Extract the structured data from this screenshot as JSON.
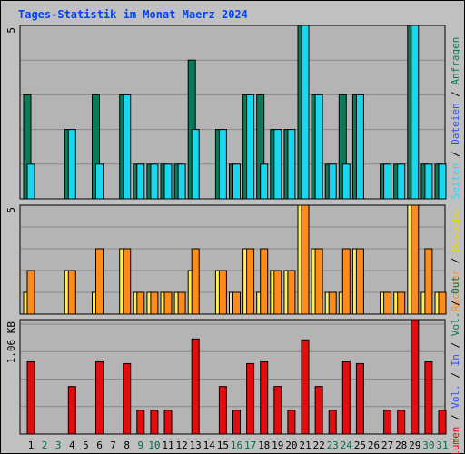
{
  "title": "Tages-Statistik im Monat Maerz 2024",
  "colors": {
    "background": "#c0c0c0",
    "plot_bg": "#b4b4b4",
    "grid": "#888888",
    "title": "#0040ff",
    "weekday": "#000000",
    "weekend": "#006a4e",
    "anfragen": "#0a7a5a",
    "dateien": "#1ad7f0",
    "seiten": "#20e0ff",
    "besuche": "#ffee55",
    "rechner": "#ff8c1a",
    "volumen": "#e30d0d",
    "vol_in": "#3050ff",
    "vol_out": "#0a7a5a"
  },
  "right_label_top": [
    {
      "text": "Anfragen",
      "color": "#0a7a5a"
    },
    {
      "text": "Dateien",
      "color": "#3050ff"
    },
    {
      "text": "Seiten",
      "color": "#20d8ff"
    }
  ],
  "right_label_mid": [
    {
      "text": "Besuche",
      "color": "#e8d800"
    },
    {
      "text": "Rechner",
      "color": "#ff8c1a"
    }
  ],
  "right_label_bottom": [
    {
      "text": "Out",
      "color": "#0a7a5a"
    },
    {
      "text": "Vol.",
      "color": "#0a7a5a"
    },
    {
      "text": "In",
      "color": "#3050ff"
    },
    {
      "text": "Vol.",
      "color": "#3050ff"
    },
    {
      "text": "Volumen",
      "color": "#e30d0d"
    }
  ],
  "chart_data": [
    {
      "type": "bar",
      "panel": "hits",
      "y_tick": "5",
      "ylim": [
        0,
        5
      ],
      "series": [
        {
          "name": "Anfragen",
          "values": [
            3,
            0,
            0,
            2,
            0,
            3,
            0,
            3,
            1,
            1,
            1,
            1,
            4,
            0,
            2,
            1,
            3,
            3,
            2,
            2,
            5,
            3,
            1,
            3,
            3,
            0,
            1,
            1,
            5,
            1,
            1
          ]
        },
        {
          "name": "Dateien",
          "values": [
            1,
            0,
            0,
            2,
            0,
            1,
            0,
            3,
            1,
            1,
            1,
            1,
            2,
            0,
            2,
            1,
            3,
            1,
            2,
            2,
            5,
            3,
            1,
            1,
            3,
            0,
            1,
            1,
            5,
            1,
            1
          ]
        }
      ]
    },
    {
      "type": "bar",
      "panel": "visits",
      "y_tick": "5",
      "ylim": [
        0,
        5
      ],
      "series": [
        {
          "name": "Besuche",
          "values": [
            1,
            0,
            0,
            2,
            0,
            1,
            0,
            3,
            1,
            1,
            1,
            1,
            2,
            0,
            2,
            1,
            3,
            1,
            2,
            2,
            5,
            3,
            1,
            1,
            3,
            0,
            1,
            1,
            5,
            1,
            1
          ]
        },
        {
          "name": "Rechner",
          "values": [
            2,
            0,
            0,
            2,
            0,
            3,
            0,
            3,
            1,
            1,
            1,
            1,
            3,
            0,
            2,
            1,
            3,
            3,
            2,
            2,
            5,
            3,
            1,
            3,
            3,
            0,
            1,
            1,
            5,
            3,
            1
          ]
        }
      ]
    },
    {
      "type": "bar",
      "panel": "volume",
      "y_tick": "1.06 KB",
      "ylim": [
        0,
        1.3
      ],
      "series": [
        {
          "name": "Volumen",
          "values": [
            0.82,
            0,
            0,
            0.54,
            0,
            0.82,
            0,
            0.8,
            0.27,
            0.27,
            0.27,
            0,
            1.08,
            0,
            0.54,
            0.27,
            0.8,
            0.82,
            0.54,
            0.27,
            1.07,
            0.54,
            0.27,
            0.82,
            0.8,
            0,
            0.27,
            0.27,
            1.3,
            0.82,
            0.27
          ]
        }
      ]
    }
  ],
  "x_labels": [
    {
      "text": "1",
      "weekend": false
    },
    {
      "text": "2",
      "weekend": true
    },
    {
      "text": "3",
      "weekend": true
    },
    {
      "text": "4",
      "weekend": false
    },
    {
      "text": "5",
      "weekend": false
    },
    {
      "text": "6",
      "weekend": false
    },
    {
      "text": "7",
      "weekend": false
    },
    {
      "text": "8",
      "weekend": false
    },
    {
      "text": "9",
      "weekend": true
    },
    {
      "text": "10",
      "weekend": true
    },
    {
      "text": "11",
      "weekend": false
    },
    {
      "text": "12",
      "weekend": false
    },
    {
      "text": "13",
      "weekend": false
    },
    {
      "text": "14",
      "weekend": false
    },
    {
      "text": "15",
      "weekend": false
    },
    {
      "text": "16",
      "weekend": true
    },
    {
      "text": "17",
      "weekend": true
    },
    {
      "text": "18",
      "weekend": false
    },
    {
      "text": "19",
      "weekend": false
    },
    {
      "text": "20",
      "weekend": false
    },
    {
      "text": "21",
      "weekend": false
    },
    {
      "text": "22",
      "weekend": false
    },
    {
      "text": "23",
      "weekend": true
    },
    {
      "text": "24",
      "weekend": true
    },
    {
      "text": "25",
      "weekend": false
    },
    {
      "text": "26",
      "weekend": false
    },
    {
      "text": "27",
      "weekend": false
    },
    {
      "text": "28",
      "weekend": false
    },
    {
      "text": "29",
      "weekend": false
    },
    {
      "text": "30",
      "weekend": true
    },
    {
      "text": "31",
      "weekend": true
    }
  ]
}
